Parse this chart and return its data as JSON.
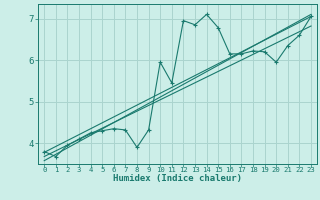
{
  "xlabel": "Humidex (Indice chaleur)",
  "bg_color": "#cceee8",
  "grid_color": "#aad4ce",
  "line_color": "#1a7a6e",
  "xlim": [
    -0.5,
    23.5
  ],
  "ylim": [
    3.5,
    7.35
  ],
  "yticks": [
    4,
    5,
    6,
    7
  ],
  "xticks": [
    0,
    1,
    2,
    3,
    4,
    5,
    6,
    7,
    8,
    9,
    10,
    11,
    12,
    13,
    14,
    15,
    16,
    17,
    18,
    19,
    20,
    21,
    22,
    23
  ],
  "scatter_x": [
    0,
    1,
    2,
    3,
    4,
    5,
    6,
    7,
    8,
    9,
    10,
    11,
    12,
    13,
    14,
    15,
    16,
    17,
    18,
    19,
    20,
    21,
    22,
    23
  ],
  "scatter_y": [
    3.8,
    3.68,
    3.95,
    4.1,
    4.25,
    4.3,
    4.35,
    4.32,
    3.9,
    4.32,
    5.95,
    5.45,
    6.95,
    6.85,
    7.1,
    6.78,
    6.15,
    6.15,
    6.22,
    6.2,
    5.95,
    6.35,
    6.6,
    7.05
  ],
  "line1_x": [
    0,
    23
  ],
  "line1_y": [
    3.78,
    7.05
  ],
  "line2_x": [
    0,
    23
  ],
  "line2_y": [
    3.68,
    6.82
  ],
  "line3_x": [
    0,
    23
  ],
  "line3_y": [
    3.58,
    7.1
  ]
}
